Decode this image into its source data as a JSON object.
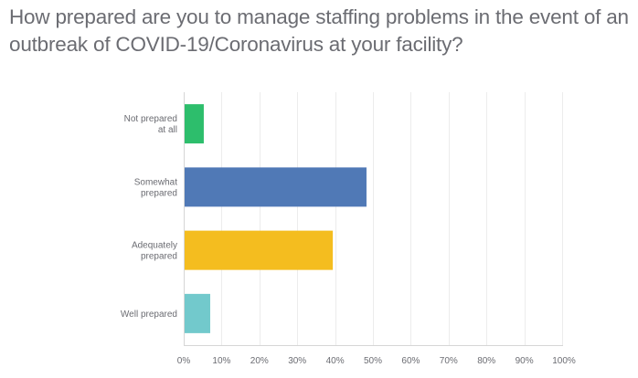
{
  "chart_data": {
    "type": "bar",
    "orientation": "horizontal",
    "title": "How prepared are you to manage staffing problems in the event of an outbreak of COVID-19/Coronavirus at your facility?",
    "categories": [
      [
        "Not prepared",
        "at all"
      ],
      [
        "Somewhat",
        "prepared"
      ],
      [
        "Adequately",
        "prepared"
      ],
      [
        "Well prepared"
      ]
    ],
    "category_names": [
      "Not prepared at all",
      "Somewhat prepared",
      "Adequately prepared",
      "Well prepared"
    ],
    "values": [
      5.3,
      48.3,
      39.4,
      7.0
    ],
    "colors": [
      "#2dbe6c",
      "#5079b6",
      "#f4bd1f",
      "#72c9cc"
    ],
    "xlabel": "",
    "ylabel": "",
    "xlim": [
      0,
      100
    ],
    "x_ticks": [
      0,
      10,
      20,
      30,
      40,
      50,
      60,
      70,
      80,
      90,
      100
    ],
    "x_tick_labels": [
      "0%",
      "10%",
      "20%",
      "30%",
      "40%",
      "50%",
      "60%",
      "70%",
      "80%",
      "90%",
      "100%"
    ],
    "grid": true,
    "legend": "none"
  }
}
